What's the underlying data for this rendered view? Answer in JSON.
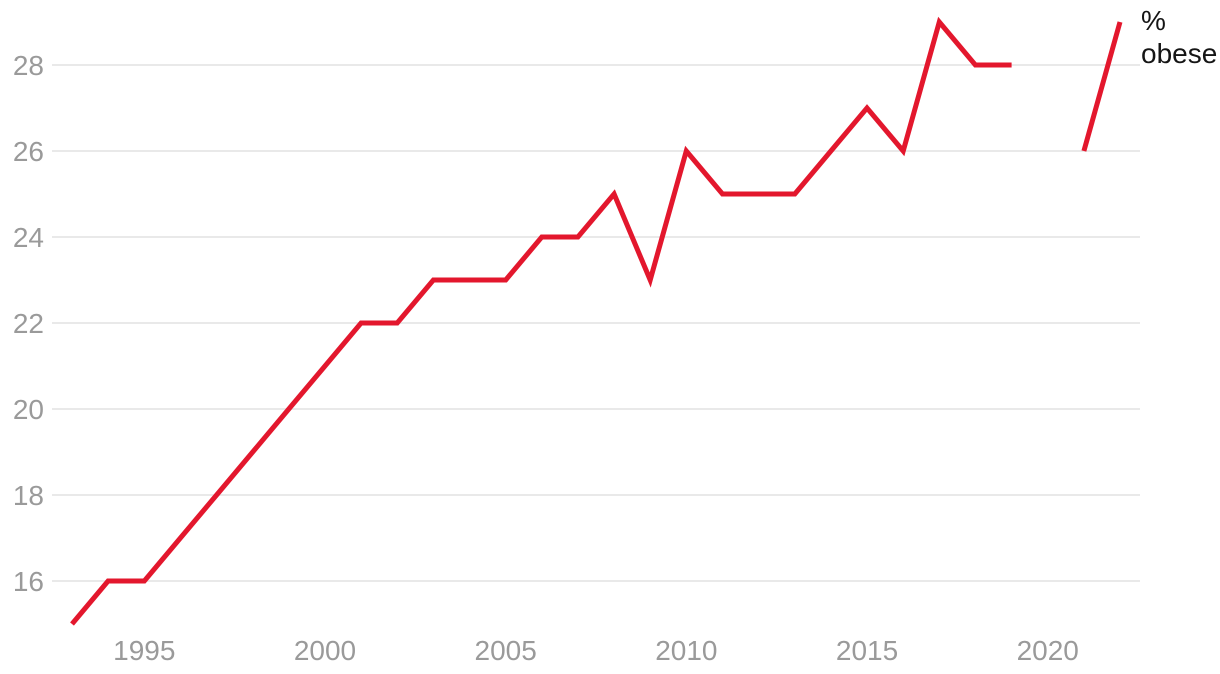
{
  "chart_data": {
    "type": "line",
    "title": "",
    "xlabel": "",
    "ylabel": "% obese",
    "series_label_lines": [
      "%",
      "obese"
    ],
    "x": [
      1993,
      1994,
      1995,
      1996,
      1997,
      1998,
      1999,
      2000,
      2001,
      2002,
      2003,
      2004,
      2005,
      2006,
      2007,
      2008,
      2009,
      2010,
      2011,
      2012,
      2013,
      2014,
      2015,
      2016,
      2017,
      2018,
      2019,
      2020,
      2021,
      2022
    ],
    "values": [
      15,
      16,
      16,
      17,
      18,
      19,
      20,
      21,
      22,
      22,
      23,
      23,
      23,
      24,
      24,
      25,
      23,
      26,
      25,
      25,
      25,
      26,
      27,
      26,
      29,
      28,
      28,
      null,
      26,
      29
    ],
    "series": [
      {
        "name": "% obese",
        "values": [
          15,
          16,
          16,
          17,
          18,
          19,
          20,
          21,
          22,
          22,
          23,
          23,
          23,
          24,
          24,
          25,
          23,
          26,
          25,
          25,
          25,
          26,
          27,
          26,
          29,
          28,
          28,
          null,
          26,
          29
        ]
      }
    ],
    "x_ticks": [
      1995,
      2000,
      2005,
      2010,
      2015,
      2020
    ],
    "y_gridlines": [
      16,
      18,
      20,
      22,
      24,
      26,
      28
    ],
    "y_tick_labels": [
      "16",
      "18",
      "20",
      "22",
      "24",
      "26",
      "28"
    ],
    "xlim": [
      1993,
      2022
    ],
    "ylim": [
      15,
      29
    ],
    "grid": "horizontal-only",
    "legend_position": "top-right",
    "gap_note": "no data point for 2020 (line break)",
    "colors": {
      "line": "#e3172d",
      "grid": "#e9e9e9",
      "axis_text": "#9a9a9a",
      "label_text": "#151515",
      "background": "#ffffff"
    }
  }
}
